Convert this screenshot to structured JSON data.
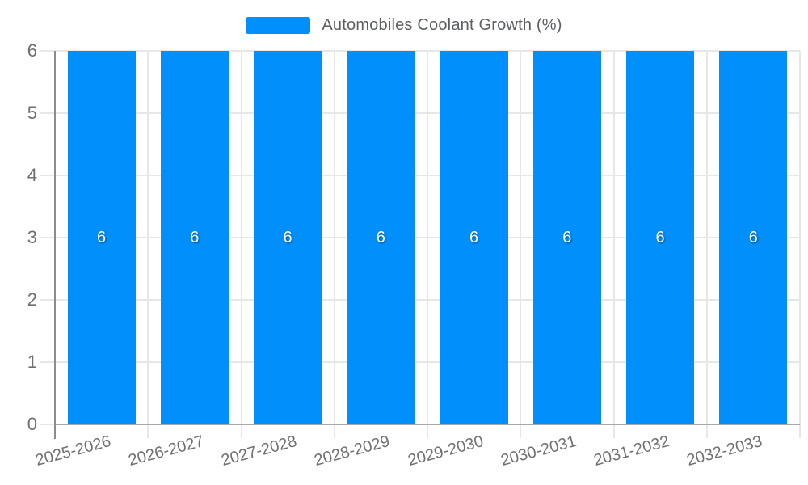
{
  "legend": {
    "label": "Automobiles Coolant Growth (%)",
    "swatch_color": "#008FFB"
  },
  "chart_data": {
    "type": "bar",
    "title": "",
    "xlabel": "",
    "ylabel": "",
    "categories": [
      "2025-2026",
      "2026-2027",
      "2027-2028",
      "2028-2029",
      "2029-2030",
      "2030-2031",
      "2031-2032",
      "2032-2033"
    ],
    "series": [
      {
        "name": "Automobiles Coolant Growth (%)",
        "values": [
          6,
          6,
          6,
          6,
          6,
          6,
          6,
          6
        ]
      }
    ],
    "data_labels": [
      "6",
      "6",
      "6",
      "6",
      "6",
      "6",
      "6",
      "6"
    ],
    "ylim": [
      0,
      6
    ],
    "yticks": [
      "0",
      "1",
      "2",
      "3",
      "4",
      "5",
      "6"
    ],
    "grid": true,
    "legend_position": "top",
    "bar_color": "#008FFB",
    "label_color_axis": "#6f6f6f",
    "grid_color": "#e7e7e7"
  }
}
